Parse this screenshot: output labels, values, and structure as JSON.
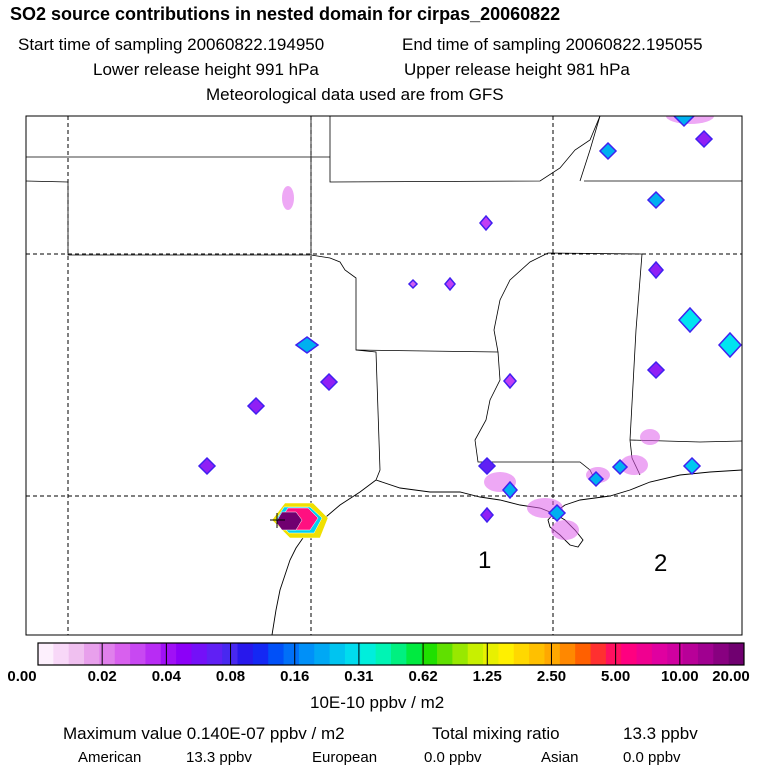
{
  "header": {
    "title": "SO2 source contributions in nested domain for cirpas_20060822",
    "start": "Start time of sampling 20060822.194950",
    "end": "End time of sampling 20060822.195055",
    "lower": "Lower release height  991 hPa",
    "upper": "Upper release height  981 hPa",
    "met": "Meteorological data used are from GFS"
  },
  "map": {
    "markers": [
      "1",
      "2"
    ]
  },
  "colorbar": {
    "ticks": [
      "0.00",
      "0.02",
      "0.04",
      "0.08",
      "0.16",
      "0.31",
      "0.62",
      "1.25",
      "2.50",
      "5.00",
      "10.00",
      "20.00"
    ],
    "units": "10E-10 ppbv / m2",
    "colors": [
      "#fdf0fd",
      "#f8d8f8",
      "#f0c0f0",
      "#e8a0ec",
      "#e080ec",
      "#d860ee",
      "#c848f2",
      "#b82cf4",
      "#a010f6",
      "#8c00f8",
      "#7410f8",
      "#6020f4",
      "#4828f0",
      "#2818ec",
      "#1428f4",
      "#0050f8",
      "#0070f8",
      "#0090f8",
      "#00a8f4",
      "#00c4f0",
      "#00dcee",
      "#00eedc",
      "#00f4b4",
      "#00f080",
      "#00ea40",
      "#20e000",
      "#60e000",
      "#98e800",
      "#c8f000",
      "#e8f000",
      "#fff000",
      "#ffd800",
      "#ffc000",
      "#ffa800",
      "#ff8800",
      "#ff6000",
      "#ff3030",
      "#ff1060",
      "#ff0080",
      "#f00090",
      "#e000a0",
      "#d000a0",
      "#b80098",
      "#a00090",
      "#880080",
      "#700070"
    ]
  },
  "summary": {
    "max_label": "Maximum value  0.140E-07 ppbv / m2",
    "total_label": "Total mixing ratio",
    "total_value": "13.3 ppbv",
    "regions": [
      {
        "name": "American",
        "value": "13.3 ppbv"
      },
      {
        "name": "European",
        "value": "0.0 ppbv"
      },
      {
        "name": "Asian",
        "value": "0.0 ppbv"
      }
    ]
  }
}
